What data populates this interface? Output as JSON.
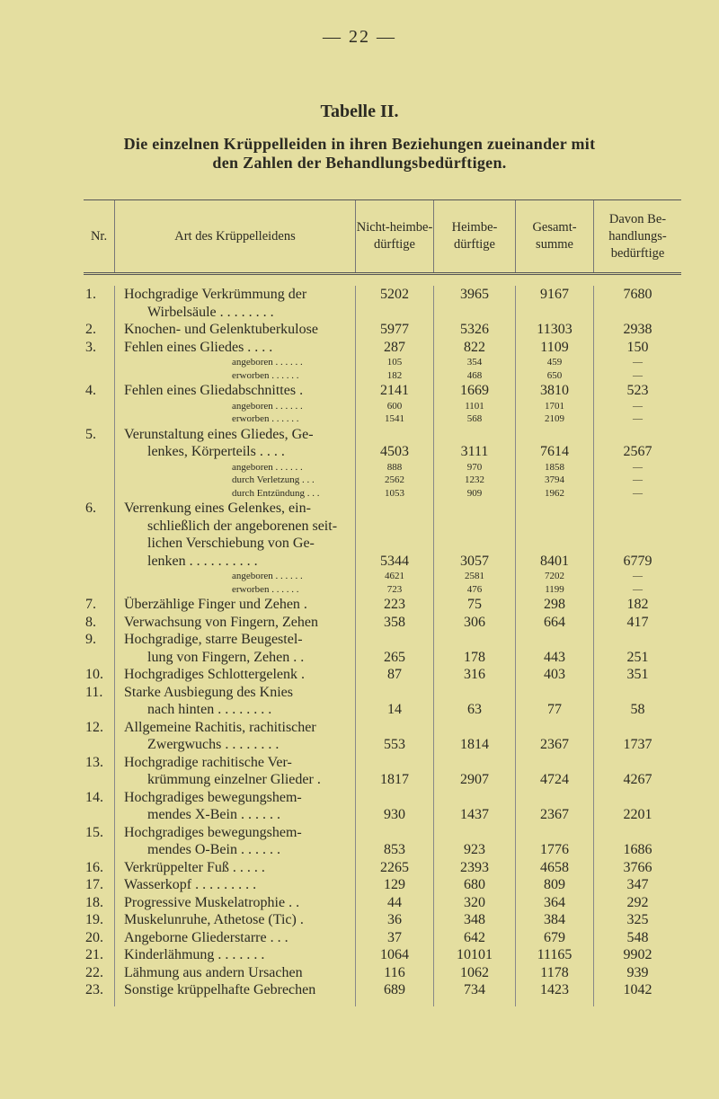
{
  "page_number": "— 22 —",
  "title": "Tabelle II.",
  "heading": [
    "Die einzelnen Krüppelleiden in ihren Beziehungen zueinander mit",
    "den Zahlen der Behandlungsbedürftigen."
  ],
  "columns": [
    "Nr.",
    "Art des Krüppelleidens",
    "Nicht-heimbe-dürftige",
    "Heimbe-dürftige",
    "Gesamt-summe",
    "Davon Be-handlungs-bedürftige"
  ],
  "rows": [
    {
      "nr": "1.",
      "label": [
        "Hochgradige Verkrümmung der",
        "Wirbelsäule . . . . . . . ."
      ],
      "values": [
        "5202",
        "3965",
        "9167",
        "7680"
      ],
      "value_line": 0
    },
    {
      "nr": "2.",
      "label": [
        "Knochen- und Gelenktuberkulose"
      ],
      "values": [
        "5977",
        "5326",
        "11303",
        "2938"
      ]
    },
    {
      "nr": "3.",
      "label": [
        "Fehlen eines Gliedes . . . ."
      ],
      "values": [
        "287",
        "822",
        "1109",
        "150"
      ],
      "subs": [
        {
          "label": "angeboren . . . . . .",
          "values": [
            "105",
            "354",
            "459",
            "—"
          ]
        },
        {
          "label": "erworben . . . . . .",
          "values": [
            "182",
            "468",
            "650",
            "—"
          ]
        }
      ]
    },
    {
      "nr": "4.",
      "label": [
        "Fehlen eines Gliedabschnittes ."
      ],
      "values": [
        "2141",
        "1669",
        "3810",
        "523"
      ],
      "subs": [
        {
          "label": "angeboren . . . . . .",
          "values": [
            "600",
            "1101",
            "1701",
            "—"
          ]
        },
        {
          "label": "erworben . . . . . .",
          "values": [
            "1541",
            "568",
            "2109",
            "—"
          ]
        }
      ]
    },
    {
      "nr": "5.",
      "label": [
        "Verunstaltung eines Gliedes, Ge-",
        "lenkes, Körperteils . . . ."
      ],
      "values": [
        "4503",
        "3111",
        "7614",
        "2567"
      ],
      "subs": [
        {
          "label": "angeboren . . . . . .",
          "values": [
            "888",
            "970",
            "1858",
            "—"
          ]
        },
        {
          "label": "durch Verletzung . . .",
          "values": [
            "2562",
            "1232",
            "3794",
            "—"
          ]
        },
        {
          "label": "durch Entzündung . . .",
          "values": [
            "1053",
            "909",
            "1962",
            "—"
          ]
        }
      ]
    },
    {
      "nr": "6.",
      "label": [
        "Verrenkung eines Gelenkes, ein-",
        "schließlich der angeborenen seit-",
        "lichen Verschiebung von Ge-",
        "lenken . . . . . . . . . ."
      ],
      "values": [
        "5344",
        "3057",
        "8401",
        "6779"
      ],
      "subs": [
        {
          "label": "angeboren . . . . . .",
          "values": [
            "4621",
            "2581",
            "7202",
            "—"
          ]
        },
        {
          "label": "erworben . . . . . .",
          "values": [
            "723",
            "476",
            "1199",
            "—"
          ]
        }
      ]
    },
    {
      "nr": "7.",
      "label": [
        "Überzählige Finger und Zehen ."
      ],
      "values": [
        "223",
        "75",
        "298",
        "182"
      ]
    },
    {
      "nr": "8.",
      "label": [
        "Verwachsung von Fingern, Zehen"
      ],
      "values": [
        "358",
        "306",
        "664",
        "417"
      ]
    },
    {
      "nr": "9.",
      "label": [
        "Hochgradige, starre Beugestel-",
        "lung von Fingern, Zehen . ."
      ],
      "values": [
        "265",
        "178",
        "443",
        "251"
      ]
    },
    {
      "nr": "10.",
      "label": [
        "Hochgradiges Schlottergelenk ."
      ],
      "values": [
        "87",
        "316",
        "403",
        "351"
      ]
    },
    {
      "nr": "11.",
      "label": [
        "Starke Ausbiegung des Knies",
        "nach hinten . . . . . . . ."
      ],
      "values": [
        "14",
        "63",
        "77",
        "58"
      ]
    },
    {
      "nr": "12.",
      "label": [
        "Allgemeine Rachitis, rachitischer",
        "Zwergwuchs . . . . . . . ."
      ],
      "values": [
        "553",
        "1814",
        "2367",
        "1737"
      ]
    },
    {
      "nr": "13.",
      "label": [
        "Hochgradige rachitische Ver-",
        "krümmung einzelner Glieder ."
      ],
      "values": [
        "1817",
        "2907",
        "4724",
        "4267"
      ]
    },
    {
      "nr": "14.",
      "label": [
        "Hochgradiges bewegungshem-",
        "mendes X-Bein . . . . . ."
      ],
      "values": [
        "930",
        "1437",
        "2367",
        "2201"
      ]
    },
    {
      "nr": "15.",
      "label": [
        "Hochgradiges bewegungshem-",
        "mendes O-Bein . . . . . ."
      ],
      "values": [
        "853",
        "923",
        "1776",
        "1686"
      ]
    },
    {
      "nr": "16.",
      "label": [
        "Verkrüppelter Fuß . . . . ."
      ],
      "values": [
        "2265",
        "2393",
        "4658",
        "3766"
      ]
    },
    {
      "nr": "17.",
      "label": [
        "Wasserkopf . . . . . . . . ."
      ],
      "values": [
        "129",
        "680",
        "809",
        "347"
      ]
    },
    {
      "nr": "18.",
      "label": [
        "Progressive Muskelatrophie . ."
      ],
      "values": [
        "44",
        "320",
        "364",
        "292"
      ]
    },
    {
      "nr": "19.",
      "label": [
        "Muskelunruhe, Athetose (Tic) ."
      ],
      "values": [
        "36",
        "348",
        "384",
        "325"
      ]
    },
    {
      "nr": "20.",
      "label": [
        "Angeborne Gliederstarre . . ."
      ],
      "values": [
        "37",
        "642",
        "679",
        "548"
      ]
    },
    {
      "nr": "21.",
      "label": [
        "Kinderlähmung . . . . . . ."
      ],
      "values": [
        "1064",
        "10101",
        "11165",
        "9902"
      ]
    },
    {
      "nr": "22.",
      "label": [
        "Lähmung aus andern Ursachen"
      ],
      "values": [
        "116",
        "1062",
        "1178",
        "939"
      ]
    },
    {
      "nr": "23.",
      "label": [
        "Sonstige krüppelhafte Gebrechen"
      ],
      "values": [
        "689",
        "734",
        "1423",
        "1042"
      ]
    }
  ]
}
